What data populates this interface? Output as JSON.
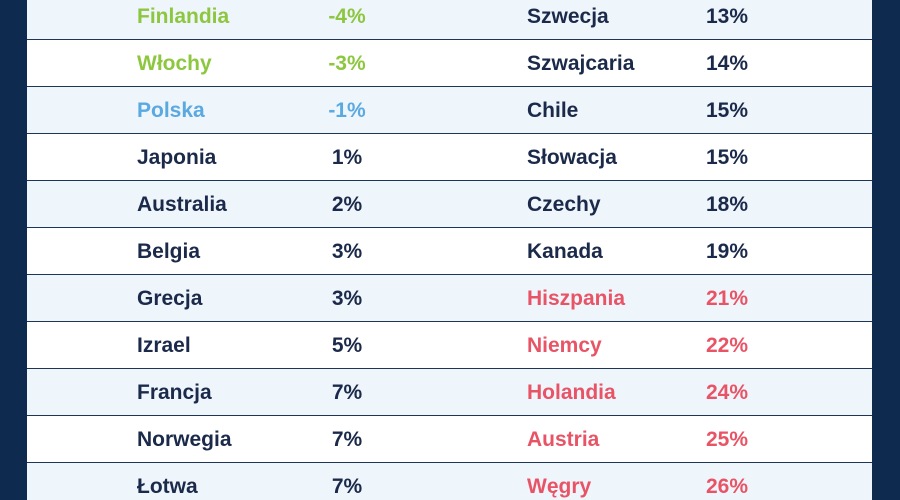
{
  "colors": {
    "background": "#0e2a4f",
    "panel": "#ffffff",
    "stripe": "#eef5fb",
    "dark": "#1b2a4a",
    "green": "#8dc63f",
    "blue": "#5aa9e0",
    "red": "#e85466"
  },
  "rows": [
    {
      "left": {
        "country": "Finlandia",
        "value": "-4%",
        "tone": "green"
      },
      "right": {
        "country": "Szwecja",
        "value": "13%",
        "tone": "dark"
      }
    },
    {
      "left": {
        "country": "Włochy",
        "value": "-3%",
        "tone": "green"
      },
      "right": {
        "country": "Szwajcaria",
        "value": "14%",
        "tone": "dark"
      }
    },
    {
      "left": {
        "country": "Polska",
        "value": "-1%",
        "tone": "blue"
      },
      "right": {
        "country": "Chile",
        "value": "15%",
        "tone": "dark"
      }
    },
    {
      "left": {
        "country": "Japonia",
        "value": "1%",
        "tone": "dark"
      },
      "right": {
        "country": "Słowacja",
        "value": "15%",
        "tone": "dark"
      }
    },
    {
      "left": {
        "country": "Australia",
        "value": "2%",
        "tone": "dark"
      },
      "right": {
        "country": "Czechy",
        "value": "18%",
        "tone": "dark"
      }
    },
    {
      "left": {
        "country": "Belgia",
        "value": "3%",
        "tone": "dark"
      },
      "right": {
        "country": "Kanada",
        "value": "19%",
        "tone": "dark"
      }
    },
    {
      "left": {
        "country": "Grecja",
        "value": "3%",
        "tone": "dark"
      },
      "right": {
        "country": "Hiszpania",
        "value": "21%",
        "tone": "red"
      }
    },
    {
      "left": {
        "country": "Izrael",
        "value": "5%",
        "tone": "dark"
      },
      "right": {
        "country": "Niemcy",
        "value": "22%",
        "tone": "red"
      }
    },
    {
      "left": {
        "country": "Francja",
        "value": "7%",
        "tone": "dark"
      },
      "right": {
        "country": "Holandia",
        "value": "24%",
        "tone": "red"
      }
    },
    {
      "left": {
        "country": "Norwegia",
        "value": "7%",
        "tone": "dark"
      },
      "right": {
        "country": "Austria",
        "value": "25%",
        "tone": "red"
      }
    },
    {
      "left": {
        "country": "Łotwa",
        "value": "7%",
        "tone": "dark"
      },
      "right": {
        "country": "Węgry",
        "value": "26%",
        "tone": "red"
      }
    }
  ]
}
